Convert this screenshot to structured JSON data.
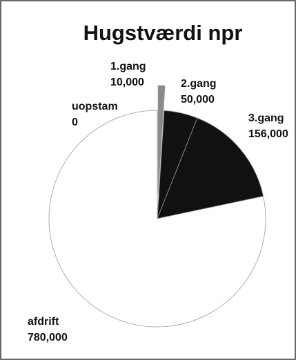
{
  "chart_data": {
    "type": "pie",
    "title": "Hugstværdi npr",
    "categories": [
      "uopstam",
      "1.gang",
      "2.gang",
      "3.gang",
      "afdrift"
    ],
    "values": [
      0,
      10000,
      50000,
      156000,
      780000
    ],
    "value_labels": [
      "0",
      "10,000",
      "50,000",
      "156,000",
      "780,000"
    ],
    "colors": [
      "#ffffff",
      "#8a8a8a",
      "#111111",
      "#111111",
      "#ffffff"
    ]
  }
}
